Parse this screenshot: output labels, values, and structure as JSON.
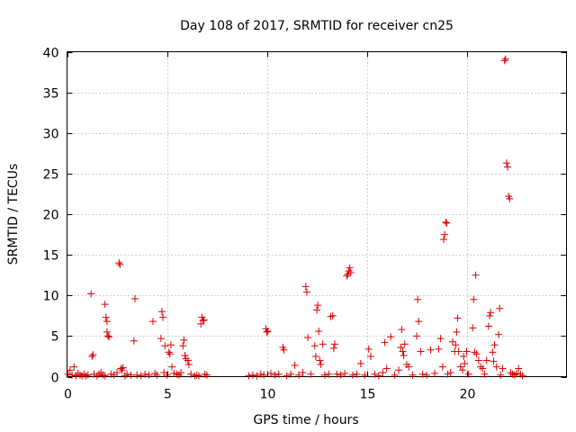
{
  "chart_data": {
    "type": "scatter",
    "title": "Day 108 of 2017, SRMTID for receiver cn25",
    "xlabel": "GPS time / hours",
    "ylabel": "SRMTID / TECUs",
    "xlim": [
      0,
      25
    ],
    "ylim": [
      0,
      40
    ],
    "x_ticks": [
      "0",
      "5",
      "10",
      "15",
      "20"
    ],
    "y_ticks": [
      "0",
      "5",
      "10",
      "15",
      "20",
      "25",
      "30",
      "35",
      "40"
    ],
    "grid": true,
    "marker": "+",
    "color": "#dd0000",
    "series": [
      {
        "name": "SRMTID",
        "points": [
          [
            0.05,
            0.3
          ],
          [
            0.15,
            0.8
          ],
          [
            0.25,
            0.2
          ],
          [
            0.35,
            1.2
          ],
          [
            0.45,
            0.1
          ],
          [
            0.55,
            0.4
          ],
          [
            0.65,
            0.2
          ],
          [
            0.75,
            0.1
          ],
          [
            0.85,
            0.3
          ],
          [
            0.95,
            0.1
          ],
          [
            1.05,
            0.2
          ],
          [
            1.2,
            10.2
          ],
          [
            1.25,
            2.5
          ],
          [
            1.3,
            2.7
          ],
          [
            1.35,
            0.3
          ],
          [
            1.5,
            0.1
          ],
          [
            1.6,
            0.3
          ],
          [
            1.7,
            0.5
          ],
          [
            1.8,
            0.2
          ],
          [
            1.9,
            0.1
          ],
          [
            1.9,
            8.9
          ],
          [
            1.95,
            7.3
          ],
          [
            2.0,
            5.5
          ],
          [
            2.0,
            6.8
          ],
          [
            2.05,
            5.0
          ],
          [
            2.1,
            4.9
          ],
          [
            2.2,
            0.3
          ],
          [
            2.35,
            0.2
          ],
          [
            2.5,
            0.5
          ],
          [
            2.6,
            14.0
          ],
          [
            2.65,
            13.8
          ],
          [
            2.7,
            1.0
          ],
          [
            2.75,
            0.8
          ],
          [
            2.8,
            1.1
          ],
          [
            2.9,
            0.1
          ],
          [
            3.0,
            0.3
          ],
          [
            3.2,
            0.2
          ],
          [
            3.35,
            4.4
          ],
          [
            3.4,
            9.6
          ],
          [
            3.5,
            0.2
          ],
          [
            3.7,
            0.1
          ],
          [
            3.9,
            0.3
          ],
          [
            4.1,
            0.2
          ],
          [
            4.3,
            6.8
          ],
          [
            4.4,
            0.4
          ],
          [
            4.5,
            0.2
          ],
          [
            4.7,
            4.7
          ],
          [
            4.75,
            8.0
          ],
          [
            4.8,
            7.3
          ],
          [
            4.85,
            0.5
          ],
          [
            4.9,
            3.8
          ],
          [
            5.0,
            0.2
          ],
          [
            5.1,
            3.0
          ],
          [
            5.15,
            2.8
          ],
          [
            5.2,
            3.9
          ],
          [
            5.25,
            1.2
          ],
          [
            5.35,
            0.4
          ],
          [
            5.5,
            0.3
          ],
          [
            5.6,
            0.2
          ],
          [
            5.7,
            0.5
          ],
          [
            5.8,
            3.8
          ],
          [
            5.85,
            4.5
          ],
          [
            5.9,
            2.6
          ],
          [
            5.95,
            2.2
          ],
          [
            6.05,
            2.0
          ],
          [
            6.1,
            1.5
          ],
          [
            6.2,
            0.3
          ],
          [
            6.4,
            0.1
          ],
          [
            6.5,
            0.2
          ],
          [
            6.6,
            0.1
          ],
          [
            6.7,
            6.5
          ],
          [
            6.75,
            7.3
          ],
          [
            6.8,
            6.9
          ],
          [
            6.85,
            7.0
          ],
          [
            6.9,
            0.3
          ],
          [
            7.0,
            0.2
          ],
          [
            9.1,
            0.1
          ],
          [
            9.3,
            0.2
          ],
          [
            9.5,
            0.1
          ],
          [
            9.7,
            0.3
          ],
          [
            9.85,
            0.2
          ],
          [
            9.95,
            5.9
          ],
          [
            10.0,
            5.5
          ],
          [
            10.05,
            5.6
          ],
          [
            10.2,
            0.4
          ],
          [
            10.4,
            0.2
          ],
          [
            10.6,
            0.3
          ],
          [
            10.8,
            3.6
          ],
          [
            10.85,
            3.3
          ],
          [
            11.0,
            0.1
          ],
          [
            11.2,
            0.3
          ],
          [
            11.4,
            1.4
          ],
          [
            11.6,
            0.2
          ],
          [
            11.8,
            0.5
          ],
          [
            11.95,
            11.1
          ],
          [
            12.0,
            10.4
          ],
          [
            12.05,
            4.8
          ],
          [
            12.2,
            0.3
          ],
          [
            12.4,
            3.8
          ],
          [
            12.45,
            2.5
          ],
          [
            12.5,
            8.2
          ],
          [
            12.55,
            8.8
          ],
          [
            12.6,
            5.6
          ],
          [
            12.65,
            2.0
          ],
          [
            12.7,
            1.5
          ],
          [
            12.8,
            4.0
          ],
          [
            12.9,
            0.2
          ],
          [
            13.1,
            0.3
          ],
          [
            13.2,
            7.4
          ],
          [
            13.3,
            7.5
          ],
          [
            13.35,
            3.5
          ],
          [
            13.4,
            4.0
          ],
          [
            13.5,
            0.3
          ],
          [
            13.7,
            0.2
          ],
          [
            13.9,
            0.4
          ],
          [
            14.0,
            12.4
          ],
          [
            14.05,
            12.6
          ],
          [
            14.1,
            13.0
          ],
          [
            14.15,
            13.4
          ],
          [
            14.2,
            12.8
          ],
          [
            14.3,
            0.2
          ],
          [
            14.5,
            0.3
          ],
          [
            14.7,
            1.6
          ],
          [
            14.9,
            0.2
          ],
          [
            15.1,
            3.4
          ],
          [
            15.2,
            2.5
          ],
          [
            15.4,
            0.3
          ],
          [
            15.6,
            0.1
          ],
          [
            15.8,
            0.5
          ],
          [
            15.9,
            4.2
          ],
          [
            16.0,
            1.0
          ],
          [
            16.2,
            4.9
          ],
          [
            16.4,
            0.2
          ],
          [
            16.6,
            0.8
          ],
          [
            16.7,
            3.6
          ],
          [
            16.75,
            5.8
          ],
          [
            16.8,
            3.1
          ],
          [
            16.85,
            2.6
          ],
          [
            16.9,
            4.0
          ],
          [
            17.0,
            1.5
          ],
          [
            17.1,
            1.2
          ],
          [
            17.3,
            0.2
          ],
          [
            17.5,
            5.0
          ],
          [
            17.55,
            9.5
          ],
          [
            17.6,
            6.8
          ],
          [
            17.7,
            3.1
          ],
          [
            17.8,
            0.3
          ],
          [
            18.0,
            0.2
          ],
          [
            18.2,
            3.3
          ],
          [
            18.4,
            0.4
          ],
          [
            18.6,
            3.4
          ],
          [
            18.7,
            4.7
          ],
          [
            18.8,
            1.2
          ],
          [
            18.85,
            16.9
          ],
          [
            18.9,
            17.5
          ],
          [
            18.95,
            19.0
          ],
          [
            19.0,
            18.9
          ],
          [
            19.05,
            0.3
          ],
          [
            19.2,
            0.5
          ],
          [
            19.3,
            4.3
          ],
          [
            19.4,
            3.1
          ],
          [
            19.45,
            3.9
          ],
          [
            19.5,
            5.5
          ],
          [
            19.55,
            7.2
          ],
          [
            19.6,
            3.1
          ],
          [
            19.7,
            1.2
          ],
          [
            19.8,
            0.8
          ],
          [
            19.85,
            2.5
          ],
          [
            19.9,
            1.6
          ],
          [
            20.0,
            3.1
          ],
          [
            20.1,
            0.3
          ],
          [
            20.3,
            6.0
          ],
          [
            20.35,
            9.5
          ],
          [
            20.4,
            3.0
          ],
          [
            20.45,
            12.5
          ],
          [
            20.5,
            2.8
          ],
          [
            20.6,
            2.0
          ],
          [
            20.7,
            1.2
          ],
          [
            20.8,
            1.0
          ],
          [
            20.9,
            0.3
          ],
          [
            21.0,
            2.0
          ],
          [
            21.1,
            6.2
          ],
          [
            21.15,
            7.5
          ],
          [
            21.2,
            7.9
          ],
          [
            21.3,
            3.0
          ],
          [
            21.35,
            1.9
          ],
          [
            21.4,
            3.9
          ],
          [
            21.5,
            1.2
          ],
          [
            21.6,
            5.2
          ],
          [
            21.65,
            8.4
          ],
          [
            21.7,
            0.2
          ],
          [
            21.8,
            1.0
          ],
          [
            21.9,
            38.9
          ],
          [
            21.95,
            39.1
          ],
          [
            22.0,
            26.3
          ],
          [
            22.05,
            25.8
          ],
          [
            22.1,
            22.2
          ],
          [
            22.15,
            21.9
          ],
          [
            22.2,
            0.5
          ],
          [
            22.3,
            0.3
          ],
          [
            22.4,
            0.2
          ],
          [
            22.5,
            0.4
          ],
          [
            22.6,
            1.0
          ],
          [
            22.7,
            0.3
          ],
          [
            22.8,
            0.1
          ]
        ]
      }
    ]
  }
}
